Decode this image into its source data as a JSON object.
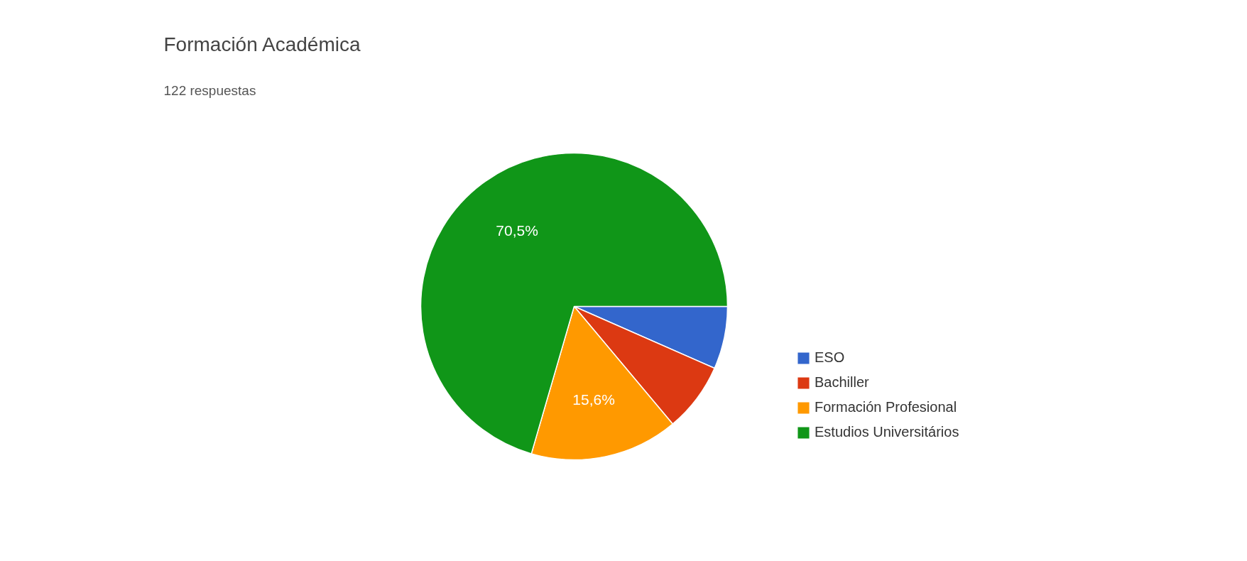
{
  "chart_data": {
    "type": "pie",
    "title": "Formación Académica",
    "subtitle": "122 respuestas",
    "categories": [
      "ESO",
      "Bachiller",
      "Formación Profesional",
      "Estudios Universitários"
    ],
    "values": [
      6.6,
      7.3,
      15.6,
      70.5
    ],
    "colors": [
      "#3366cc",
      "#dc3912",
      "#ff9900",
      "#109618"
    ],
    "value_labels": [
      null,
      null,
      "15,6%",
      "70,5%"
    ],
    "legend": "right"
  }
}
